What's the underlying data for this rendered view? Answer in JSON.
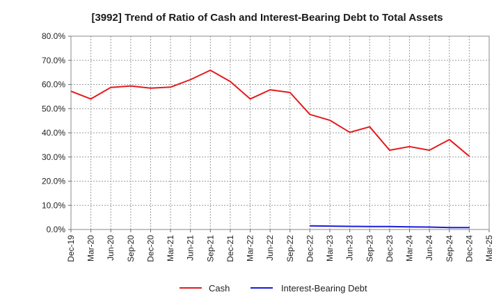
{
  "chart_data": {
    "type": "line",
    "title": "[3992]  Trend of Ratio of Cash and Interest-Bearing Debt to Total Assets",
    "x": [
      "Dec-19",
      "Mar-20",
      "Jun-20",
      "Sep-20",
      "Dec-20",
      "Mar-21",
      "Jun-21",
      "Sep-21",
      "Dec-21",
      "Mar-22",
      "Jun-22",
      "Sep-22",
      "Dec-22",
      "Mar-23",
      "Jun-23",
      "Sep-23",
      "Dec-23",
      "Mar-24",
      "Jun-24",
      "Sep-24",
      "Dec-24",
      "Mar-25"
    ],
    "ylim": [
      0,
      80
    ],
    "yticks": [
      0,
      10,
      20,
      30,
      40,
      50,
      60,
      70,
      80
    ],
    "ytick_labels": [
      "0.0%",
      "10.0%",
      "20.0%",
      "30.0%",
      "40.0%",
      "50.0%",
      "60.0%",
      "70.0%",
      "80.0%"
    ],
    "grid": true,
    "legend_position": "bottom",
    "series": [
      {
        "name": "Cash",
        "color": "#e31a1c",
        "values": [
          57.2,
          54.0,
          58.8,
          59.4,
          58.5,
          58.9,
          62.0,
          65.9,
          61.2,
          54.0,
          57.8,
          56.7,
          47.6,
          45.2,
          40.2,
          42.5,
          32.8,
          34.3,
          32.8,
          37.2,
          30.3,
          null
        ]
      },
      {
        "name": "Interest-Bearing Debt",
        "color": "#1a1adb",
        "values": [
          null,
          null,
          null,
          null,
          null,
          null,
          null,
          null,
          null,
          null,
          null,
          null,
          1.5,
          1.4,
          1.3,
          1.2,
          1.2,
          1.1,
          1.0,
          0.8,
          0.8,
          null
        ]
      }
    ]
  }
}
